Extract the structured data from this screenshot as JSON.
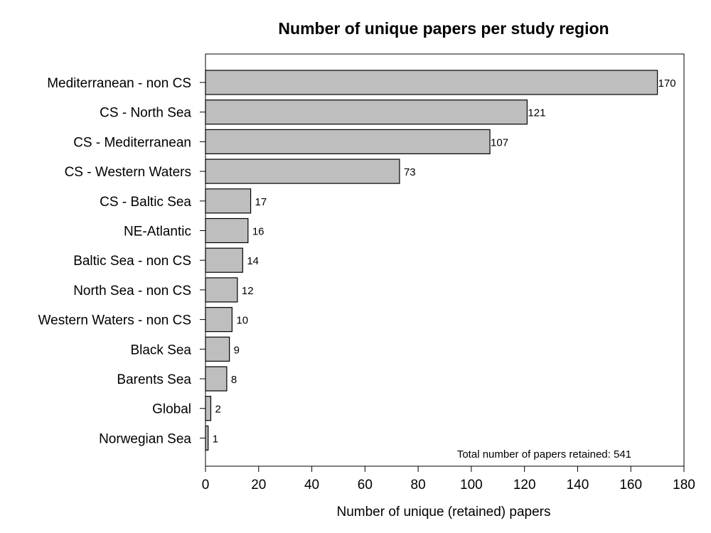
{
  "chart_data": {
    "type": "bar",
    "orientation": "horizontal",
    "title": "Number of unique papers per study region",
    "xlabel": "Number of unique (retained) papers",
    "ylabel": "",
    "xlim": [
      0,
      180
    ],
    "xticks": [
      0,
      20,
      40,
      60,
      80,
      100,
      120,
      140,
      160,
      180
    ],
    "categories": [
      "Mediterranean - non CS",
      "CS - North Sea",
      "CS - Mediterranean",
      "CS - Western Waters",
      "CS - Baltic Sea",
      "NE-Atlantic",
      "Baltic Sea - non CS",
      "North Sea - non CS",
      "Western Waters - non CS",
      "Black Sea",
      "Barents Sea",
      "Global",
      "Norwegian Sea"
    ],
    "values": [
      170,
      121,
      107,
      73,
      17,
      16,
      14,
      12,
      10,
      9,
      8,
      2,
      1
    ],
    "value_labels": [
      "170",
      "121",
      "107",
      "73",
      "17",
      "16",
      "14",
      "12",
      "10",
      "9",
      "8",
      "2",
      "1"
    ],
    "annotation": "Total number of papers retained: 541",
    "bar_color": "#bebebe",
    "grid": false,
    "legend": "none"
  }
}
